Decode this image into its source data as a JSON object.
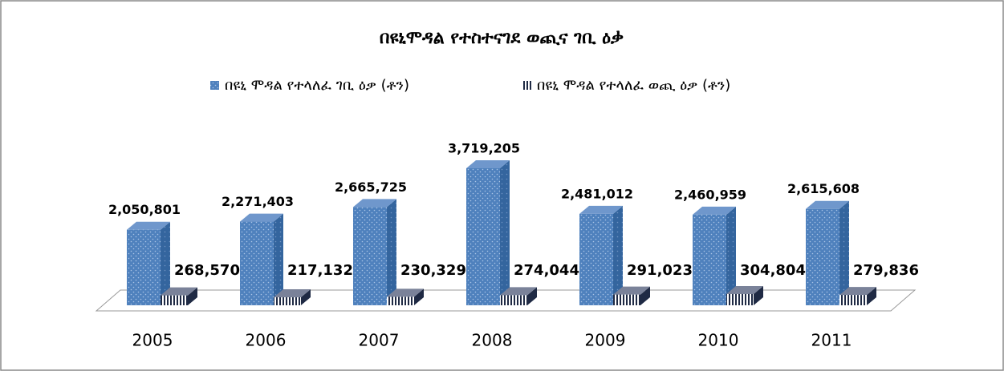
{
  "chart_data": {
    "type": "bar3d",
    "title": "በዩኒሞዳል የተስተናገደ ወጪና ገቢ ዕቃ",
    "categories": [
      "2005",
      "2006",
      "2007",
      "2008",
      "2009",
      "2010",
      "2011"
    ],
    "series": [
      {
        "name": "በዩኒ ሞዳል  የተላለፈ ገቢ ዕቃ (ቶን)",
        "color": "#4f81bd",
        "values": [
          2050801,
          2271403,
          2665725,
          3719205,
          2481012,
          2460959,
          2615608
        ],
        "value_labels": [
          "2,050,801",
          "2,271,403",
          "2,665,725",
          "3,719,205",
          "2,481,012",
          "2,460,959",
          "2,615,608"
        ]
      },
      {
        "name": "በዩኒ ሞዳል  የተላለፈ ወጪ ዕቃ (ቶን)",
        "color": "#1f2a44",
        "values": [
          268570,
          217132,
          230329,
          274044,
          291023,
          304804,
          279836
        ],
        "value_labels": [
          "268,570",
          "217,132",
          "230,329",
          "274,044",
          "291,023",
          "304,804",
          "279,836"
        ]
      }
    ],
    "legend": "top"
  }
}
